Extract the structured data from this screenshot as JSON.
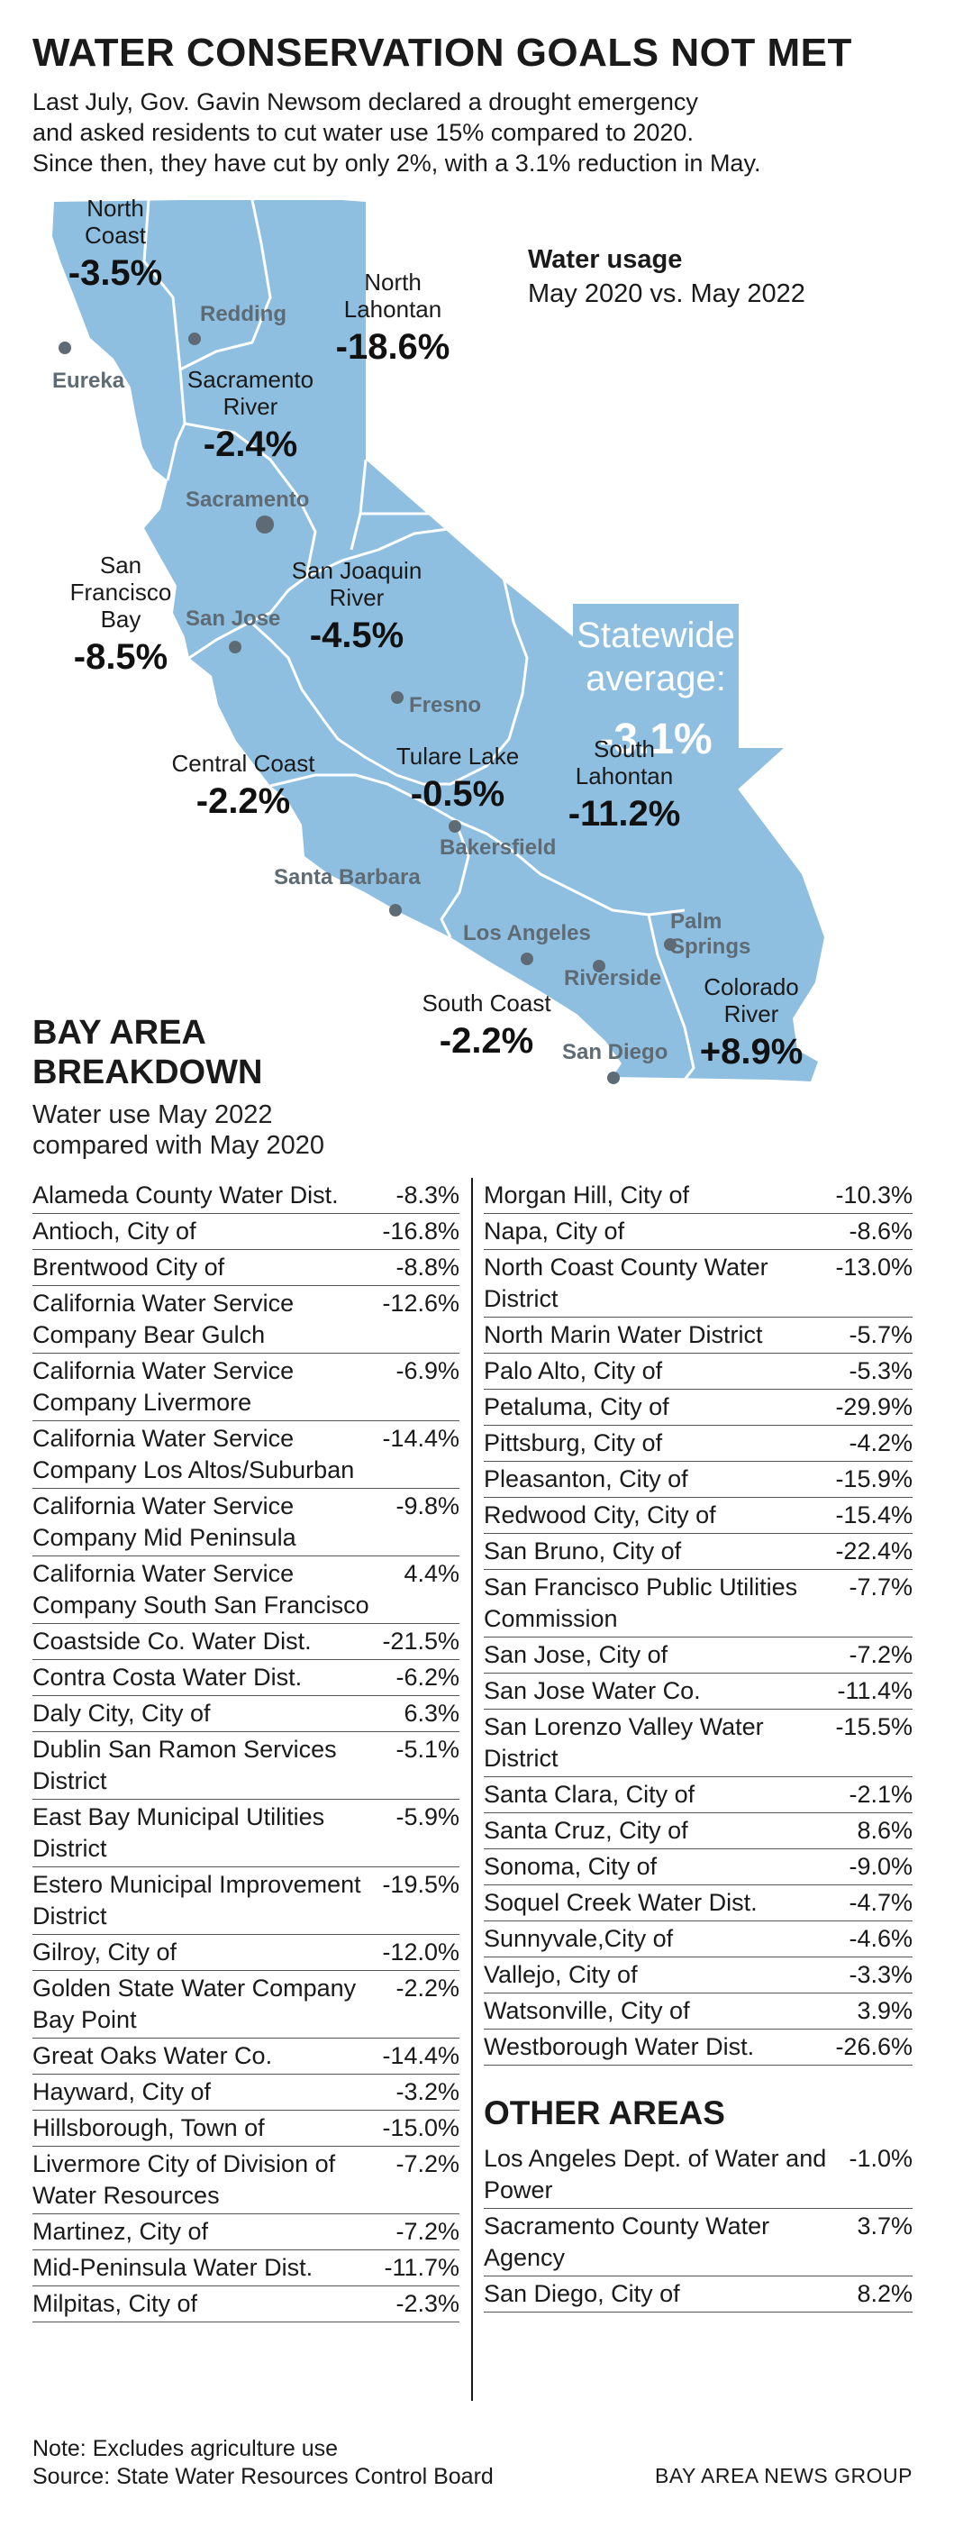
{
  "header": {
    "title": "WATER CONSERVATION GOALS NOT MET",
    "intro_lines": [
      "Last July, Gov. Gavin Newsom declared a drought emergency",
      "and asked residents to cut water use 15% compared to 2020.",
      "Since then, they have cut by only 2%, with a 3.1% reduction in May."
    ]
  },
  "map": {
    "legend_title": "Water usage",
    "legend_subtitle": "May 2020 vs. May 2022",
    "statewide_label_1": "Statewide",
    "statewide_label_2": "average:",
    "statewide_value": "-3.1%",
    "colors": {
      "land": "#8fbfe0",
      "borders": "#ffffff",
      "arrow": "#8fbfe0",
      "city_dot": "#5e6b74"
    },
    "regions": [
      {
        "name": "North Coast",
        "lines": [
          "North",
          "Coast"
        ],
        "value": "-3.5%"
      },
      {
        "name": "North Lahontan",
        "lines": [
          "North",
          "Lahontan"
        ],
        "value": "-18.6%"
      },
      {
        "name": "Sacramento River",
        "lines": [
          "Sacramento",
          "River"
        ],
        "value": "-2.4%"
      },
      {
        "name": "San Francisco Bay",
        "lines": [
          "San",
          "Francisco",
          "Bay"
        ],
        "value": "-8.5%"
      },
      {
        "name": "San Joaquin River",
        "lines": [
          "San Joaquin",
          "River"
        ],
        "value": "-4.5%"
      },
      {
        "name": "Central Coast",
        "lines": [
          "Central Coast"
        ],
        "value": "-2.2%"
      },
      {
        "name": "Tulare Lake",
        "lines": [
          "Tulare Lake"
        ],
        "value": "-0.5%"
      },
      {
        "name": "South Lahontan",
        "lines": [
          "South",
          "Lahontan"
        ],
        "value": "-11.2%"
      },
      {
        "name": "South Coast",
        "lines": [
          "South Coast"
        ],
        "value": "-2.2%"
      },
      {
        "name": "Colorado River",
        "lines": [
          "Colorado",
          "River"
        ],
        "value": "+8.9%"
      }
    ],
    "cities": [
      "Eureka",
      "Redding",
      "Sacramento",
      "San Jose",
      "Fresno",
      "Bakersfield",
      "Santa Barbara",
      "Los Angeles",
      "Riverside",
      "Palm Springs",
      "San Diego"
    ]
  },
  "bay_area": {
    "title_line1": "BAY AREA",
    "title_line2": "BREAKDOWN",
    "subtitle_line1": "Water use May 2022",
    "subtitle_line2": "compared with May 2020",
    "left": [
      {
        "name": "Alameda County Water Dist.",
        "value": "-8.3%"
      },
      {
        "name": "Antioch, City of",
        "value": "-16.8%"
      },
      {
        "name": "Brentwood  City of",
        "value": "-8.8%"
      },
      {
        "name": "California Water Service Company Bear Gulch",
        "value": "-12.6%"
      },
      {
        "name": "California Water Service Company Livermore",
        "value": "-6.9%"
      },
      {
        "name": "California Water Service Company Los Altos/Suburban",
        "value": "-14.4%"
      },
      {
        "name": "California Water Service Company Mid Peninsula",
        "value": "-9.8%"
      },
      {
        "name": "California Water Service Company South San Francisco",
        "value": "4.4%"
      },
      {
        "name": "Coastside Co. Water Dist.",
        "value": "-21.5%"
      },
      {
        "name": "Contra Costa Water Dist.",
        "value": "-6.2%"
      },
      {
        "name": "Daly City, City of",
        "value": "6.3%"
      },
      {
        "name": "Dublin San Ramon Services District",
        "value": "-5.1%"
      },
      {
        "name": "East Bay Municipal Utilities District",
        "value": "-5.9%"
      },
      {
        "name": "Estero Municipal Improvement District",
        "value": "-19.5%"
      },
      {
        "name": "Gilroy, City of",
        "value": "-12.0%"
      },
      {
        "name": "Golden State Water Company Bay Point",
        "value": "-2.2%"
      },
      {
        "name": "Great Oaks Water Co.",
        "value": "-14.4%"
      },
      {
        "name": "Hayward, City of",
        "value": "-3.2%"
      },
      {
        "name": "Hillsborough, Town of",
        "value": "-15.0%"
      },
      {
        "name": "Livermore City of Division of Water Resources",
        "value": "-7.2%"
      },
      {
        "name": "Martinez, City of",
        "value": "-7.2%"
      },
      {
        "name": "Mid-Peninsula Water Dist.",
        "value": "-11.7%"
      },
      {
        "name": "Milpitas, City of",
        "value": "-2.3%"
      }
    ],
    "right": [
      {
        "name": "Morgan Hill, City of",
        "value": "-10.3%"
      },
      {
        "name": "Napa, City of",
        "value": "-8.6%"
      },
      {
        "name": "North Coast County Water District",
        "value": "-13.0%"
      },
      {
        "name": "North Marin Water District",
        "value": "-5.7%"
      },
      {
        "name": "Palo Alto, City of",
        "value": "-5.3%"
      },
      {
        "name": "Petaluma, City of",
        "value": "-29.9%"
      },
      {
        "name": "Pittsburg, City of",
        "value": "-4.2%"
      },
      {
        "name": "Pleasanton, City of",
        "value": "-15.9%"
      },
      {
        "name": "Redwood City, City of",
        "value": "-15.4%"
      },
      {
        "name": "San Bruno, City of",
        "value": "-22.4%"
      },
      {
        "name": "San Francisco Public Utilities Commission",
        "value": "-7.7%"
      },
      {
        "name": "San Jose, City of",
        "value": "-7.2%"
      },
      {
        "name": "San Jose Water Co.",
        "value": "-11.4%"
      },
      {
        "name": "San Lorenzo Valley Water District",
        "value": "-15.5%"
      },
      {
        "name": "Santa Clara, City of",
        "value": "-2.1%"
      },
      {
        "name": "Santa Cruz, City of",
        "value": "8.6%"
      },
      {
        "name": "Sonoma, City of",
        "value": "-9.0%"
      },
      {
        "name": "Soquel Creek Water Dist.",
        "value": "-4.7%"
      },
      {
        "name": "Sunnyvale,City of",
        "value": "-4.6%"
      },
      {
        "name": "Vallejo, City of",
        "value": "-3.3%"
      },
      {
        "name": "Watsonville, City of",
        "value": "3.9%"
      },
      {
        "name": "Westborough Water Dist.",
        "value": "-26.6%"
      }
    ]
  },
  "other_areas": {
    "title": "OTHER AREAS",
    "items": [
      {
        "name": "Los Angeles Dept. of Water and Power",
        "value": "-1.0%"
      },
      {
        "name": "Sacramento County Water Agency",
        "value": "3.7%"
      },
      {
        "name": "San Diego, City of",
        "value": "8.2%"
      }
    ]
  },
  "footer": {
    "note": "Note: Excludes agriculture use",
    "source": "Source: State Water Resources Control Board",
    "credit": "BAY AREA NEWS GROUP"
  },
  "chart_data": {
    "type": "table",
    "title": "WATER CONSERVATION GOALS NOT MET",
    "map_values": {
      "categories": [
        "North Coast",
        "North Lahontan",
        "Sacramento River",
        "San Francisco Bay",
        "San Joaquin River",
        "Central Coast",
        "Tulare Lake",
        "South Lahontan",
        "South Coast",
        "Colorado River"
      ],
      "values": [
        -3.5,
        -18.6,
        -2.4,
        -8.5,
        -4.5,
        -2.2,
        -0.5,
        -11.2,
        -2.2,
        8.9
      ],
      "statewide_average": -3.1
    },
    "bay_area_values": [
      [
        "Alameda County Water Dist.",
        -8.3
      ],
      [
        "Antioch, City of",
        -16.8
      ],
      [
        "Brentwood  City of",
        -8.8
      ],
      [
        "California Water Service Company Bear Gulch",
        -12.6
      ],
      [
        "California Water Service Company Livermore",
        -6.9
      ],
      [
        "California Water Service Company Los Altos/Suburban",
        -14.4
      ],
      [
        "California Water Service Company Mid Peninsula",
        -9.8
      ],
      [
        "California Water Service Company South San Francisco",
        4.4
      ],
      [
        "Coastside Co. Water Dist.",
        -21.5
      ],
      [
        "Contra Costa Water Dist.",
        -6.2
      ],
      [
        "Daly City, City of",
        6.3
      ],
      [
        "Dublin San Ramon Services District",
        -5.1
      ],
      [
        "East Bay Municipal Utilities District",
        -5.9
      ],
      [
        "Estero Municipal Improvement District",
        -19.5
      ],
      [
        "Gilroy, City of",
        -12.0
      ],
      [
        "Golden State Water Company Bay Point",
        -2.2
      ],
      [
        "Great Oaks Water Co.",
        -14.4
      ],
      [
        "Hayward, City of",
        -3.2
      ],
      [
        "Hillsborough, Town of",
        -15.0
      ],
      [
        "Livermore City of Division of Water Resources",
        -7.2
      ],
      [
        "Martinez, City of",
        -7.2
      ],
      [
        "Mid-Peninsula Water Dist.",
        -11.7
      ],
      [
        "Milpitas, City of",
        -2.3
      ],
      [
        "Morgan Hill, City of",
        -10.3
      ],
      [
        "Napa, City of",
        -8.6
      ],
      [
        "North Coast County Water District",
        -13.0
      ],
      [
        "North Marin Water District",
        -5.7
      ],
      [
        "Palo Alto, City of",
        -5.3
      ],
      [
        "Petaluma, City of",
        -29.9
      ],
      [
        "Pittsburg, City of",
        -4.2
      ],
      [
        "Pleasanton, City of",
        -15.9
      ],
      [
        "Redwood City, City of",
        -15.4
      ],
      [
        "San Bruno, City of",
        -22.4
      ],
      [
        "San Francisco Public Utilities Commission",
        -7.7
      ],
      [
        "San Jose, City of",
        -7.2
      ],
      [
        "San Jose Water Co.",
        -11.4
      ],
      [
        "San Lorenzo Valley Water District",
        -15.5
      ],
      [
        "Santa Clara, City of",
        -2.1
      ],
      [
        "Santa Cruz, City of",
        8.6
      ],
      [
        "Sonoma, City of",
        -9.0
      ],
      [
        "Soquel Creek Water Dist.",
        -4.7
      ],
      [
        "Sunnyvale,City of",
        -4.6
      ],
      [
        "Vallejo, City of",
        -3.3
      ],
      [
        "Watsonville, City of",
        3.9
      ],
      [
        "Westborough Water Dist.",
        -26.6
      ]
    ],
    "other_area_values": [
      [
        "Los Angeles Dept. of Water and Power",
        -1.0
      ],
      [
        "Sacramento County Water Agency",
        3.7
      ],
      [
        "San Diego, City of",
        8.2
      ]
    ]
  }
}
